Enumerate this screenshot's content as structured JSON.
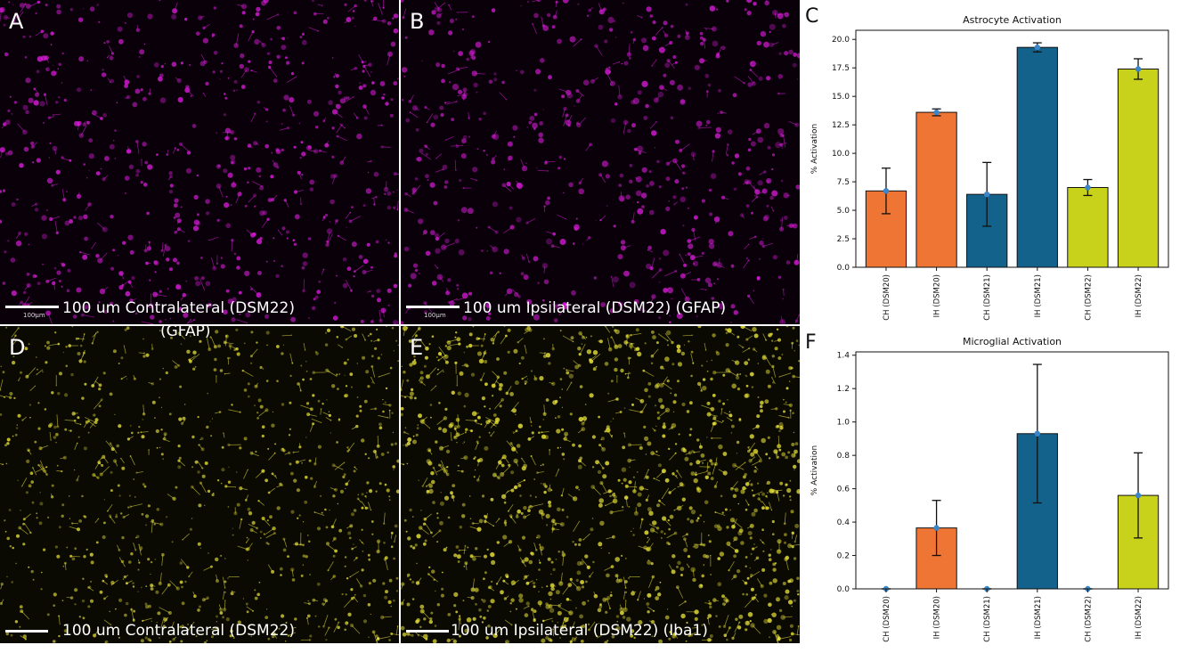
{
  "panels": {
    "A": {
      "letter": "A",
      "caption": "100 um Contralateral (DSM22)",
      "caption2": "(GFAP)",
      "scale_tag": "100μm",
      "color": "#d81bd8"
    },
    "B": {
      "letter": "B",
      "caption": "100 um Ipsilateral (DSM22) (GFAP)",
      "scale_tag": "100μm",
      "color": "#d81bd8"
    },
    "D": {
      "letter": "D",
      "caption": "100 um Contralateral (DSM22)",
      "color": "#e8e23a"
    },
    "E": {
      "letter": "E",
      "caption": "100 um Ipsilateral (DSM22) (Iba1)",
      "color": "#e8e23a"
    }
  },
  "chart_data": [
    {
      "panel": "C",
      "type": "bar",
      "title": "Astrocyte Activation",
      "xlabel": "",
      "ylabel": "% Activation",
      "categories": [
        "CH (DSM20)",
        "IH (DSM20)",
        "CH (DSM21)",
        "IH (DSM21)",
        "CH (DSM22)",
        "IH (DSM22)"
      ],
      "values": [
        6.7,
        13.6,
        6.4,
        19.3,
        7.0,
        17.4
      ],
      "errors": [
        2.0,
        0.3,
        2.8,
        0.4,
        0.7,
        0.9
      ],
      "colors": [
        "#ef7534",
        "#ef7534",
        "#13628b",
        "#13628b",
        "#c9d21b",
        "#c9d21b"
      ],
      "ylim": [
        0,
        20.8
      ],
      "yticks": [
        "0.0",
        "2.5",
        "5.0",
        "7.5",
        "10.0",
        "12.5",
        "15.0",
        "17.5",
        "20.0"
      ],
      "ytick_values": [
        0,
        2.5,
        5,
        7.5,
        10,
        12.5,
        15,
        17.5,
        20
      ],
      "marker_color": "#3a86c8",
      "grid": false
    },
    {
      "panel": "F",
      "type": "bar",
      "title": "Microglial Activation",
      "xlabel": "",
      "ylabel": "% Activation",
      "categories": [
        "CH (DSM20)",
        "IH (DSM20)",
        "CH (DSM21)",
        "IH (DSM21)",
        "CH (DSM22)",
        "IH (DSM22)"
      ],
      "values": [
        0.0,
        0.365,
        0.0,
        0.93,
        0.0,
        0.56
      ],
      "errors": [
        0.0,
        0.165,
        0.0,
        0.415,
        0.0,
        0.255
      ],
      "colors": [
        "#ef7534",
        "#ef7534",
        "#13628b",
        "#13628b",
        "#c9d21b",
        "#c9d21b"
      ],
      "ylim": [
        0,
        1.42
      ],
      "yticks": [
        "0.0",
        "0.2",
        "0.4",
        "0.6",
        "0.8",
        "1.0",
        "1.2",
        "1.4"
      ],
      "ytick_values": [
        0,
        0.2,
        0.4,
        0.6,
        0.8,
        1.0,
        1.2,
        1.4
      ],
      "marker_color": "#3a86c8",
      "grid": false
    }
  ],
  "chart_letters": {
    "C": "C",
    "F": "F"
  }
}
